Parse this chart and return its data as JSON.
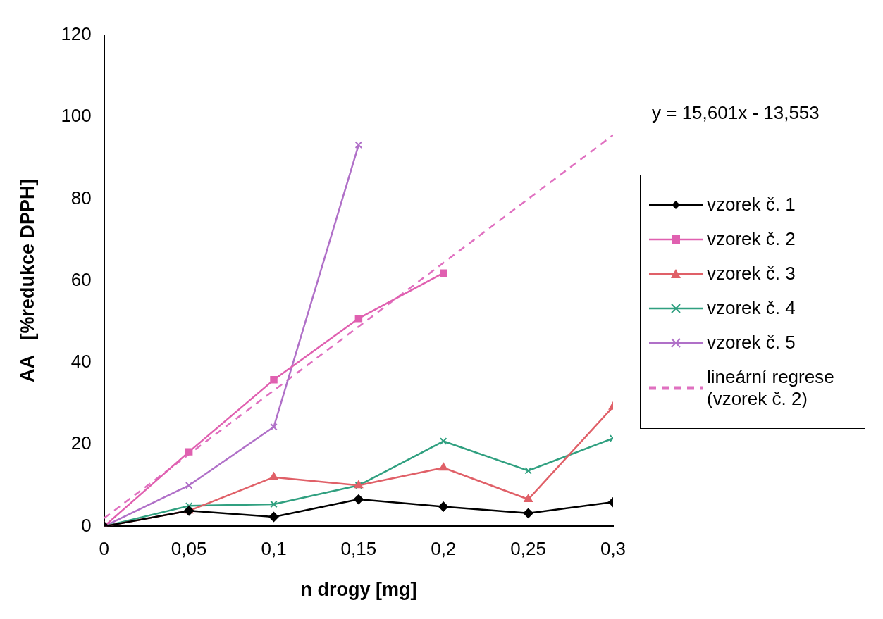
{
  "chart_data": {
    "type": "line",
    "xlabel": "n drogy [mg]",
    "ylabel": "AA   [%redukce DPPH]",
    "x": [
      0,
      0.05,
      0.1,
      0.15,
      0.2,
      0.25,
      0.3
    ],
    "xlim": [
      0,
      0.3
    ],
    "xticks": [
      0,
      {
        "value": 0.05,
        "label": "0,05"
      },
      {
        "value": 0.1,
        "label": "0,1"
      },
      {
        "value": 0.15,
        "label": "0,15"
      },
      {
        "value": 0.2,
        "label": "0,2"
      },
      {
        "value": 0.25,
        "label": "0,25"
      },
      {
        "value": 0.3,
        "label": "0,3"
      }
    ],
    "ylim": [
      0,
      120
    ],
    "yticks": [
      0,
      20,
      40,
      60,
      80,
      100,
      120
    ],
    "grid": false,
    "legend": "right",
    "series": [
      {
        "name": "vzorek č. 1",
        "color": "#000000",
        "marker": "diamond",
        "values": [
          0,
          3.8,
          2.3,
          6.6,
          4.8,
          3.2,
          5.9
        ]
      },
      {
        "name": "vzorek č. 2",
        "color": "#e060b0",
        "marker": "square",
        "values": [
          0,
          18.2,
          35.8,
          50.8,
          61.9,
          null,
          null
        ]
      },
      {
        "name": "vzorek č. 3",
        "color": "#e06068",
        "marker": "triangle",
        "values": [
          0,
          3.8,
          12,
          10,
          14.3,
          6.6,
          29.2
        ]
      },
      {
        "name": "vzorek č. 4",
        "color": "#30a080",
        "marker": "cross",
        "values": [
          0,
          5,
          5.4,
          10,
          20.8,
          13.6,
          21.5
        ]
      },
      {
        "name": "vzorek č. 5",
        "color": "#b070c8",
        "marker": "cross",
        "values": [
          0,
          10,
          24.3,
          93.2,
          null,
          null,
          null
        ]
      },
      {
        "name": "lineární regrese (vzorek č. 2)",
        "color": "#e070c0",
        "marker": "none",
        "line_style": "dashed",
        "x": [
          0,
          0.3
        ],
        "values": [
          2,
          95.6
        ]
      }
    ],
    "annotations": [
      "y = 15,601x - 13,553"
    ]
  }
}
